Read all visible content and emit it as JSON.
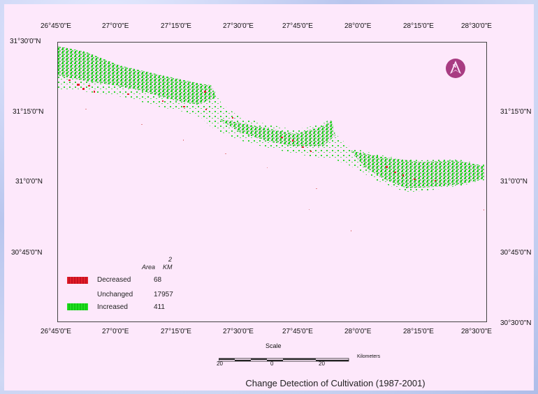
{
  "title": "Change Detection of Cultivation (1987-2001)",
  "longitude_labels": [
    "26°45'0\"E",
    "27°0'0\"E",
    "27°15'0\"E",
    "27°30'0\"E",
    "27°45'0\"E",
    "28°0'0\"E",
    "28°15'0\"E",
    "28°30'0\"E"
  ],
  "latitude_labels_left": [
    "31°30'0\"N",
    "31°15'0\"N",
    "31°0'0\"N",
    "30°45'0\"N"
  ],
  "latitude_labels_right": [
    "31°15'0\"N",
    "31°0'0\"N",
    "30°45'0\"N",
    "30°30'0\"N"
  ],
  "legend": {
    "area_header": "Area",
    "unit_header": "KM",
    "unit_exponent": "2",
    "items": [
      {
        "label": "Decreased",
        "value": "68",
        "color": "#e0202a"
      },
      {
        "label": "Unchanged",
        "value": "17957",
        "color": null
      },
      {
        "label": "Increased",
        "value": "411",
        "color": "#22dd22"
      }
    ]
  },
  "scale_bar": {
    "label": "Scale",
    "ticks": [
      "20",
      "0",
      "20"
    ],
    "unit": "Kilometers"
  },
  "north_arrow": {
    "letter": "N",
    "color": "#a83c82"
  }
}
